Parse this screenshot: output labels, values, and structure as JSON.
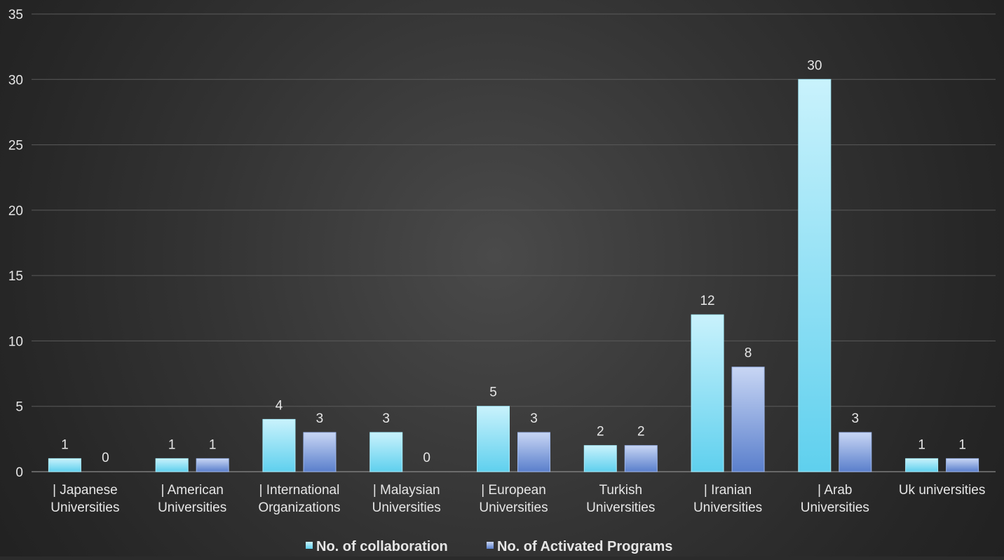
{
  "chart_data": {
    "type": "bar",
    "title": "",
    "xlabel": "",
    "ylabel": "",
    "ylim": [
      0,
      35
    ],
    "yticks": [
      0,
      5,
      10,
      15,
      20,
      25,
      30,
      35
    ],
    "grid": true,
    "legend_position": "bottom",
    "categories": [
      [
        "| Japanese",
        "Universities"
      ],
      [
        "| American",
        "Universities"
      ],
      [
        "| International",
        "Organizations"
      ],
      [
        "| Malaysian",
        "Universities"
      ],
      [
        "| European",
        "Universities"
      ],
      [
        "Turkish",
        "Universities"
      ],
      [
        "| Iranian",
        "Universities"
      ],
      [
        "| Arab",
        "Universities"
      ],
      [
        "Uk universities"
      ]
    ],
    "series": [
      {
        "name": "No. of collaboration",
        "values": [
          1,
          1,
          4,
          3,
          5,
          2,
          12,
          30,
          1
        ],
        "color": "#7fdcf3"
      },
      {
        "name": "No. of Activated Programs",
        "values": [
          0,
          1,
          3,
          0,
          3,
          2,
          8,
          3,
          1
        ],
        "color": "#7f9fdc"
      }
    ]
  }
}
